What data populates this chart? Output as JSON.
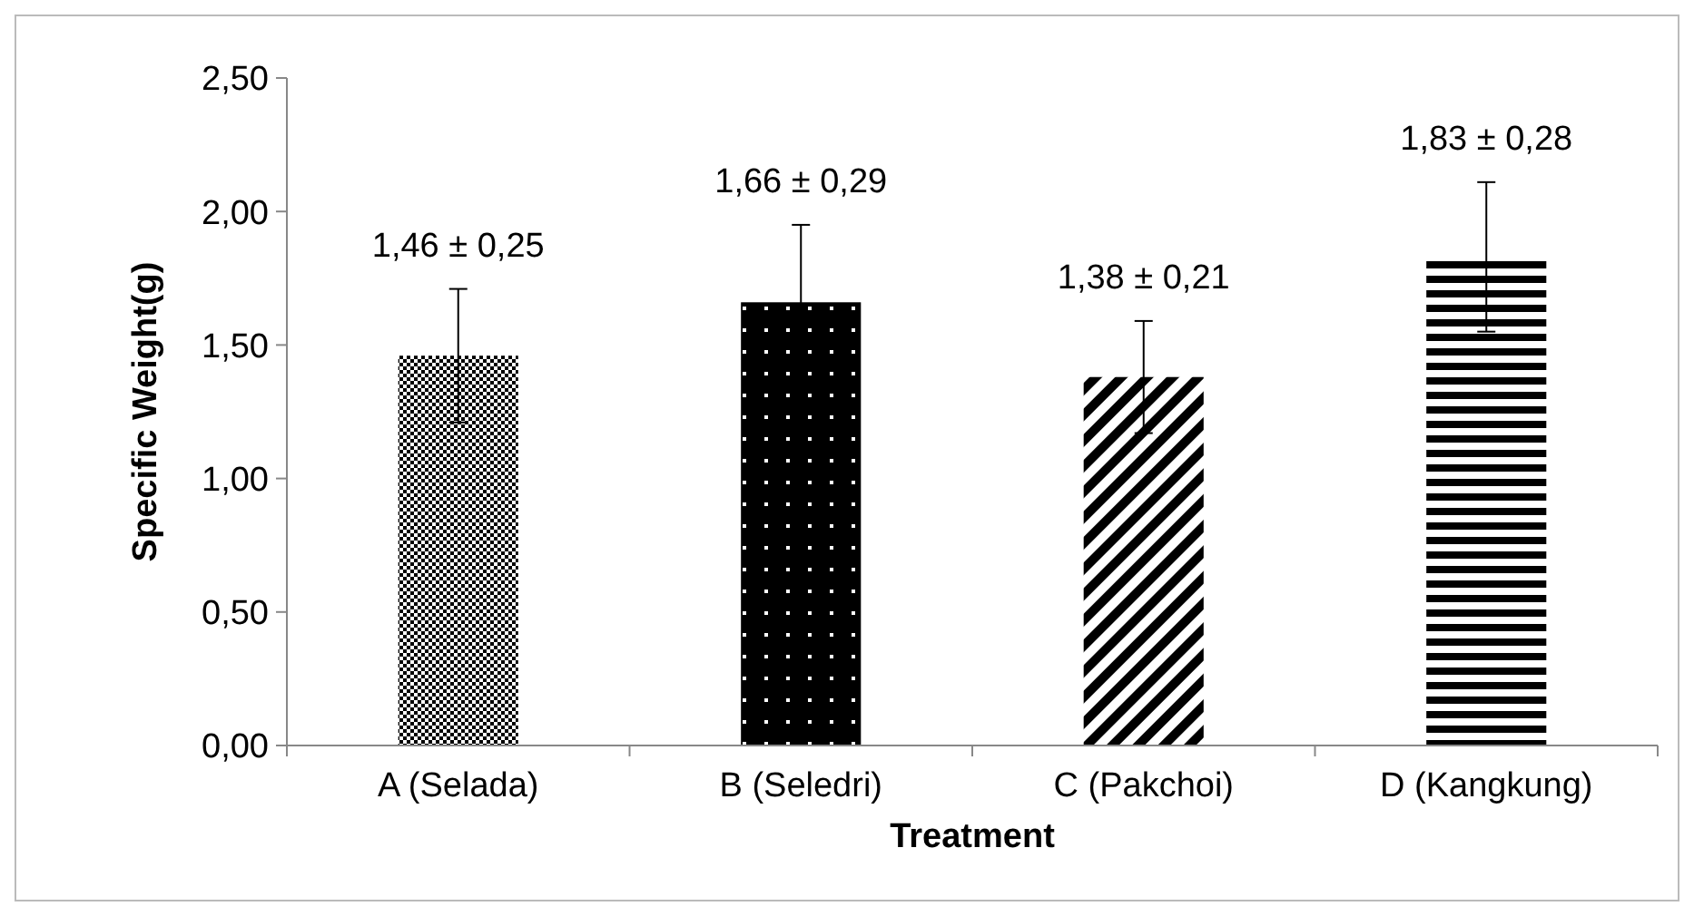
{
  "chart_data": {
    "type": "bar",
    "xlabel": "Treatment",
    "ylabel": "Specific Weight(g)",
    "categories": [
      "A (Selada)",
      "B (Seledri)",
      "C (Pakchoi)",
      "D (Kangkung)"
    ],
    "values": [
      1.46,
      1.66,
      1.38,
      1.83
    ],
    "errors": [
      0.25,
      0.29,
      0.21,
      0.28
    ],
    "value_labels": [
      "1,46 ± 0,25",
      "1,66 ± 0,29",
      "1,38 ± 0,21",
      "1,83 ± 0,28"
    ],
    "color": "#000000",
    "ylim": [
      0,
      2.5
    ],
    "yticks": [
      {
        "value": 0,
        "label": "0,00"
      },
      {
        "value": 0.5,
        "label": "0,50"
      },
      {
        "value": 1,
        "label": "1,00"
      },
      {
        "value": 1.5,
        "label": "1,50"
      },
      {
        "value": 2,
        "label": "2,00"
      },
      {
        "value": 2.5,
        "label": "2,50"
      }
    ],
    "grid": false
  }
}
